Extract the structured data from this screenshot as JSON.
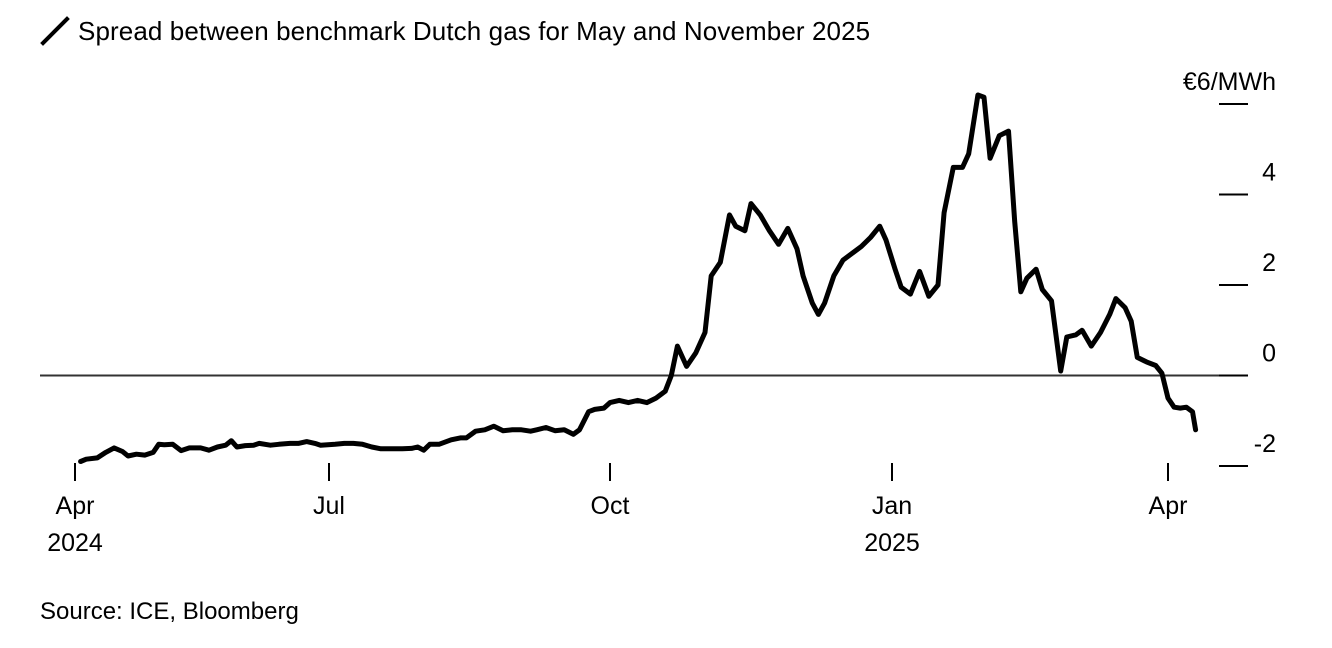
{
  "title": "Spread between benchmark Dutch gas for May and November 2025",
  "source": "Source: ICE, Bloomberg",
  "icon": "slash-line-icon",
  "colors": {
    "line": "#000000",
    "axis": "#000000",
    "zero_line": "#333333",
    "background": "#ffffff"
  },
  "chart_data": {
    "type": "line",
    "title": "Spread between benchmark Dutch gas for May and November 2025",
    "ylabel": "€6/MWh",
    "ylim": [
      -2,
      6
    ],
    "y_ticks": [
      {
        "value": 6,
        "label": "€6/MWh"
      },
      {
        "value": 4,
        "label": "4"
      },
      {
        "value": 2,
        "label": "2"
      },
      {
        "value": 0,
        "label": "0"
      },
      {
        "value": -2,
        "label": "-2"
      }
    ],
    "x_ticks": [
      {
        "date": "2024-04-01",
        "label": "Apr",
        "year": "2024"
      },
      {
        "date": "2024-07-01",
        "label": "Jul",
        "year": ""
      },
      {
        "date": "2024-10-01",
        "label": "Oct",
        "year": ""
      },
      {
        "date": "2025-01-01",
        "label": "Jan",
        "year": "2025"
      },
      {
        "date": "2025-04-01",
        "label": "Apr",
        "year": ""
      }
    ],
    "xlim": [
      "2024-04-01",
      "2025-04-12"
    ],
    "reference_line": 0,
    "grid": false,
    "series": [
      {
        "values": [
          [
            "2024-04-03",
            -1.9
          ],
          [
            "2024-04-05",
            -1.85
          ],
          [
            "2024-04-09",
            -1.82
          ],
          [
            "2024-04-12",
            -1.7
          ],
          [
            "2024-04-15",
            -1.6
          ],
          [
            "2024-04-18",
            -1.68
          ],
          [
            "2024-04-20",
            -1.78
          ],
          [
            "2024-04-23",
            -1.74
          ],
          [
            "2024-04-26",
            -1.76
          ],
          [
            "2024-04-29",
            -1.7
          ],
          [
            "2024-05-01",
            -1.52
          ],
          [
            "2024-05-03",
            -1.53
          ],
          [
            "2024-05-06",
            -1.52
          ],
          [
            "2024-05-09",
            -1.66
          ],
          [
            "2024-05-12",
            -1.6
          ],
          [
            "2024-05-16",
            -1.6
          ],
          [
            "2024-05-19",
            -1.65
          ],
          [
            "2024-05-22",
            -1.58
          ],
          [
            "2024-05-25",
            -1.54
          ],
          [
            "2024-05-27",
            -1.44
          ],
          [
            "2024-05-29",
            -1.58
          ],
          [
            "2024-06-01",
            -1.55
          ],
          [
            "2024-06-04",
            -1.54
          ],
          [
            "2024-06-06",
            -1.5
          ],
          [
            "2024-06-10",
            -1.54
          ],
          [
            "2024-06-13",
            -1.52
          ],
          [
            "2024-06-17",
            -1.5
          ],
          [
            "2024-06-20",
            -1.5
          ],
          [
            "2024-06-23",
            -1.46
          ],
          [
            "2024-06-26",
            -1.5
          ],
          [
            "2024-06-28",
            -1.54
          ],
          [
            "2024-07-03",
            -1.52
          ],
          [
            "2024-07-06",
            -1.5
          ],
          [
            "2024-07-09",
            -1.5
          ],
          [
            "2024-07-12",
            -1.52
          ],
          [
            "2024-07-15",
            -1.58
          ],
          [
            "2024-07-18",
            -1.62
          ],
          [
            "2024-07-21",
            -1.62
          ],
          [
            "2024-07-25",
            -1.62
          ],
          [
            "2024-07-28",
            -1.61
          ],
          [
            "2024-07-30",
            -1.58
          ],
          [
            "2024-08-01",
            -1.65
          ],
          [
            "2024-08-03",
            -1.52
          ],
          [
            "2024-08-06",
            -1.52
          ],
          [
            "2024-08-10",
            -1.42
          ],
          [
            "2024-08-13",
            -1.38
          ],
          [
            "2024-08-15",
            -1.38
          ],
          [
            "2024-08-18",
            -1.23
          ],
          [
            "2024-08-21",
            -1.2
          ],
          [
            "2024-08-24",
            -1.12
          ],
          [
            "2024-08-27",
            -1.22
          ],
          [
            "2024-08-30",
            -1.2
          ],
          [
            "2024-09-02",
            -1.2
          ],
          [
            "2024-09-05",
            -1.23
          ],
          [
            "2024-09-07",
            -1.2
          ],
          [
            "2024-09-10",
            -1.15
          ],
          [
            "2024-09-13",
            -1.22
          ],
          [
            "2024-09-16",
            -1.2
          ],
          [
            "2024-09-19",
            -1.3
          ],
          [
            "2024-09-21",
            -1.2
          ],
          [
            "2024-09-24",
            -0.8
          ],
          [
            "2024-09-26",
            -0.75
          ],
          [
            "2024-09-29",
            -0.72
          ],
          [
            "2024-10-01",
            -0.6
          ],
          [
            "2024-10-04",
            -0.55
          ],
          [
            "2024-10-07",
            -0.6
          ],
          [
            "2024-10-10",
            -0.55
          ],
          [
            "2024-10-13",
            -0.6
          ],
          [
            "2024-10-16",
            -0.5
          ],
          [
            "2024-10-19",
            -0.35
          ],
          [
            "2024-10-21",
            0.0
          ],
          [
            "2024-10-23",
            0.65
          ],
          [
            "2024-10-26",
            0.2
          ],
          [
            "2024-10-29",
            0.5
          ],
          [
            "2024-11-01",
            0.95
          ],
          [
            "2024-11-03",
            2.2
          ],
          [
            "2024-11-06",
            2.5
          ],
          [
            "2024-11-09",
            3.55
          ],
          [
            "2024-11-11",
            3.3
          ],
          [
            "2024-11-14",
            3.2
          ],
          [
            "2024-11-16",
            3.8
          ],
          [
            "2024-11-19",
            3.55
          ],
          [
            "2024-11-22",
            3.2
          ],
          [
            "2024-11-25",
            2.9
          ],
          [
            "2024-11-28",
            3.25
          ],
          [
            "2024-12-01",
            2.8
          ],
          [
            "2024-12-03",
            2.2
          ],
          [
            "2024-12-06",
            1.6
          ],
          [
            "2024-12-08",
            1.35
          ],
          [
            "2024-12-10",
            1.6
          ],
          [
            "2024-12-13",
            2.2
          ],
          [
            "2024-12-16",
            2.55
          ],
          [
            "2024-12-19",
            2.7
          ],
          [
            "2024-12-22",
            2.85
          ],
          [
            "2024-12-25",
            3.05
          ],
          [
            "2024-12-28",
            3.3
          ],
          [
            "2024-12-30",
            3.0
          ],
          [
            "2025-01-02",
            2.35
          ],
          [
            "2025-01-04",
            1.95
          ],
          [
            "2025-01-07",
            1.8
          ],
          [
            "2025-01-10",
            2.3
          ],
          [
            "2025-01-13",
            1.75
          ],
          [
            "2025-01-16",
            2.0
          ],
          [
            "2025-01-18",
            3.6
          ],
          [
            "2025-01-21",
            4.6
          ],
          [
            "2025-01-24",
            4.6
          ],
          [
            "2025-01-26",
            4.9
          ],
          [
            "2025-01-29",
            6.2
          ],
          [
            "2025-01-31",
            6.15
          ],
          [
            "2025-02-02",
            4.8
          ],
          [
            "2025-02-05",
            5.3
          ],
          [
            "2025-02-08",
            5.4
          ],
          [
            "2025-02-10",
            3.4
          ],
          [
            "2025-02-12",
            1.85
          ],
          [
            "2025-02-14",
            2.15
          ],
          [
            "2025-02-17",
            2.35
          ],
          [
            "2025-02-19",
            1.9
          ],
          [
            "2025-02-22",
            1.65
          ],
          [
            "2025-02-25",
            0.1
          ],
          [
            "2025-02-27",
            0.85
          ],
          [
            "2025-03-02",
            0.9
          ],
          [
            "2025-03-04",
            1.0
          ],
          [
            "2025-03-07",
            0.65
          ],
          [
            "2025-03-10",
            0.95
          ],
          [
            "2025-03-13",
            1.35
          ],
          [
            "2025-03-15",
            1.7
          ],
          [
            "2025-03-18",
            1.5
          ],
          [
            "2025-03-20",
            1.2
          ],
          [
            "2025-03-22",
            0.4
          ],
          [
            "2025-03-25",
            0.3
          ],
          [
            "2025-03-28",
            0.22
          ],
          [
            "2025-03-30",
            0.05
          ],
          [
            "2025-04-01",
            -0.5
          ],
          [
            "2025-04-03",
            -0.7
          ],
          [
            "2025-04-05",
            -0.72
          ],
          [
            "2025-04-07",
            -0.7
          ],
          [
            "2025-04-09",
            -0.8
          ],
          [
            "2025-04-10",
            -1.2
          ]
        ]
      }
    ]
  }
}
